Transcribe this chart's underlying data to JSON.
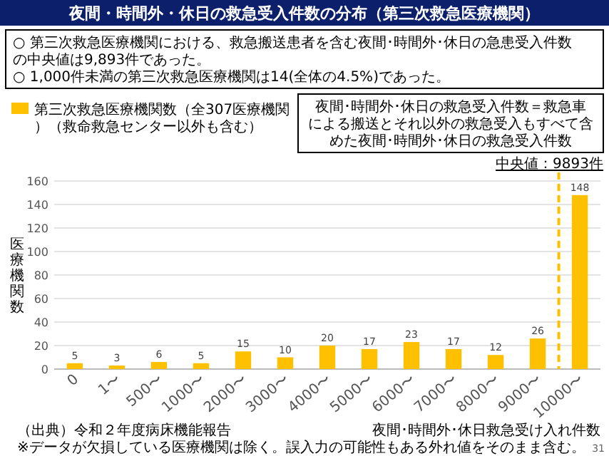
{
  "chart_data": {
    "type": "bar",
    "title": "夜間・時間外・休日の救急受入件数の分布（第三次救急医療機関）",
    "xlabel": "夜間･時間外･休日救急受け入れ件数",
    "ylabel": "医療機関数",
    "categories": [
      "0",
      "1〜",
      "500〜",
      "1000〜",
      "2000〜",
      "3000〜",
      "4000〜",
      "5000〜",
      "6000〜",
      "7000〜",
      "8000〜",
      "9000〜",
      "10000〜"
    ],
    "series": [
      {
        "name": "第三次救急医療機関数（全307医療機関）（救命救急センター以外も含む）",
        "color": "#ffc000",
        "values": [
          5,
          3,
          6,
          5,
          15,
          10,
          20,
          17,
          23,
          17,
          12,
          26,
          148
        ]
      }
    ],
    "ylim": [
      0,
      160
    ],
    "yticks": [
      0,
      20,
      40,
      60,
      80,
      100,
      120,
      140,
      160
    ],
    "grid": "y",
    "legend": "top",
    "data_labels": true,
    "ref_lines": [
      {
        "axis": "x",
        "value": "10000〜",
        "label": "中央値：9893件",
        "color": "#ffc000",
        "line_style": "dashed"
      }
    ],
    "annotations": [
      "○ 第三次救急医療機関における、救急搬送患者を含む夜間･時間外･休日の急患受入件数の中央値は9,893件であった。",
      "○ 1,000件未満の第三次救急医療機関は14(全体の4.5%)であった。",
      "夜間･時間外･休日の救急受入件数＝救急車による搬送とそれ以外の救急受入もすべて含めた夜間･時間外･休日の救急受入件数",
      "（出典）令和２年度病床機能報告",
      "※データが欠損している医療機関は除く。誤入力の可能性もある外れ値をそのまま含む。",
      "31"
    ]
  }
}
